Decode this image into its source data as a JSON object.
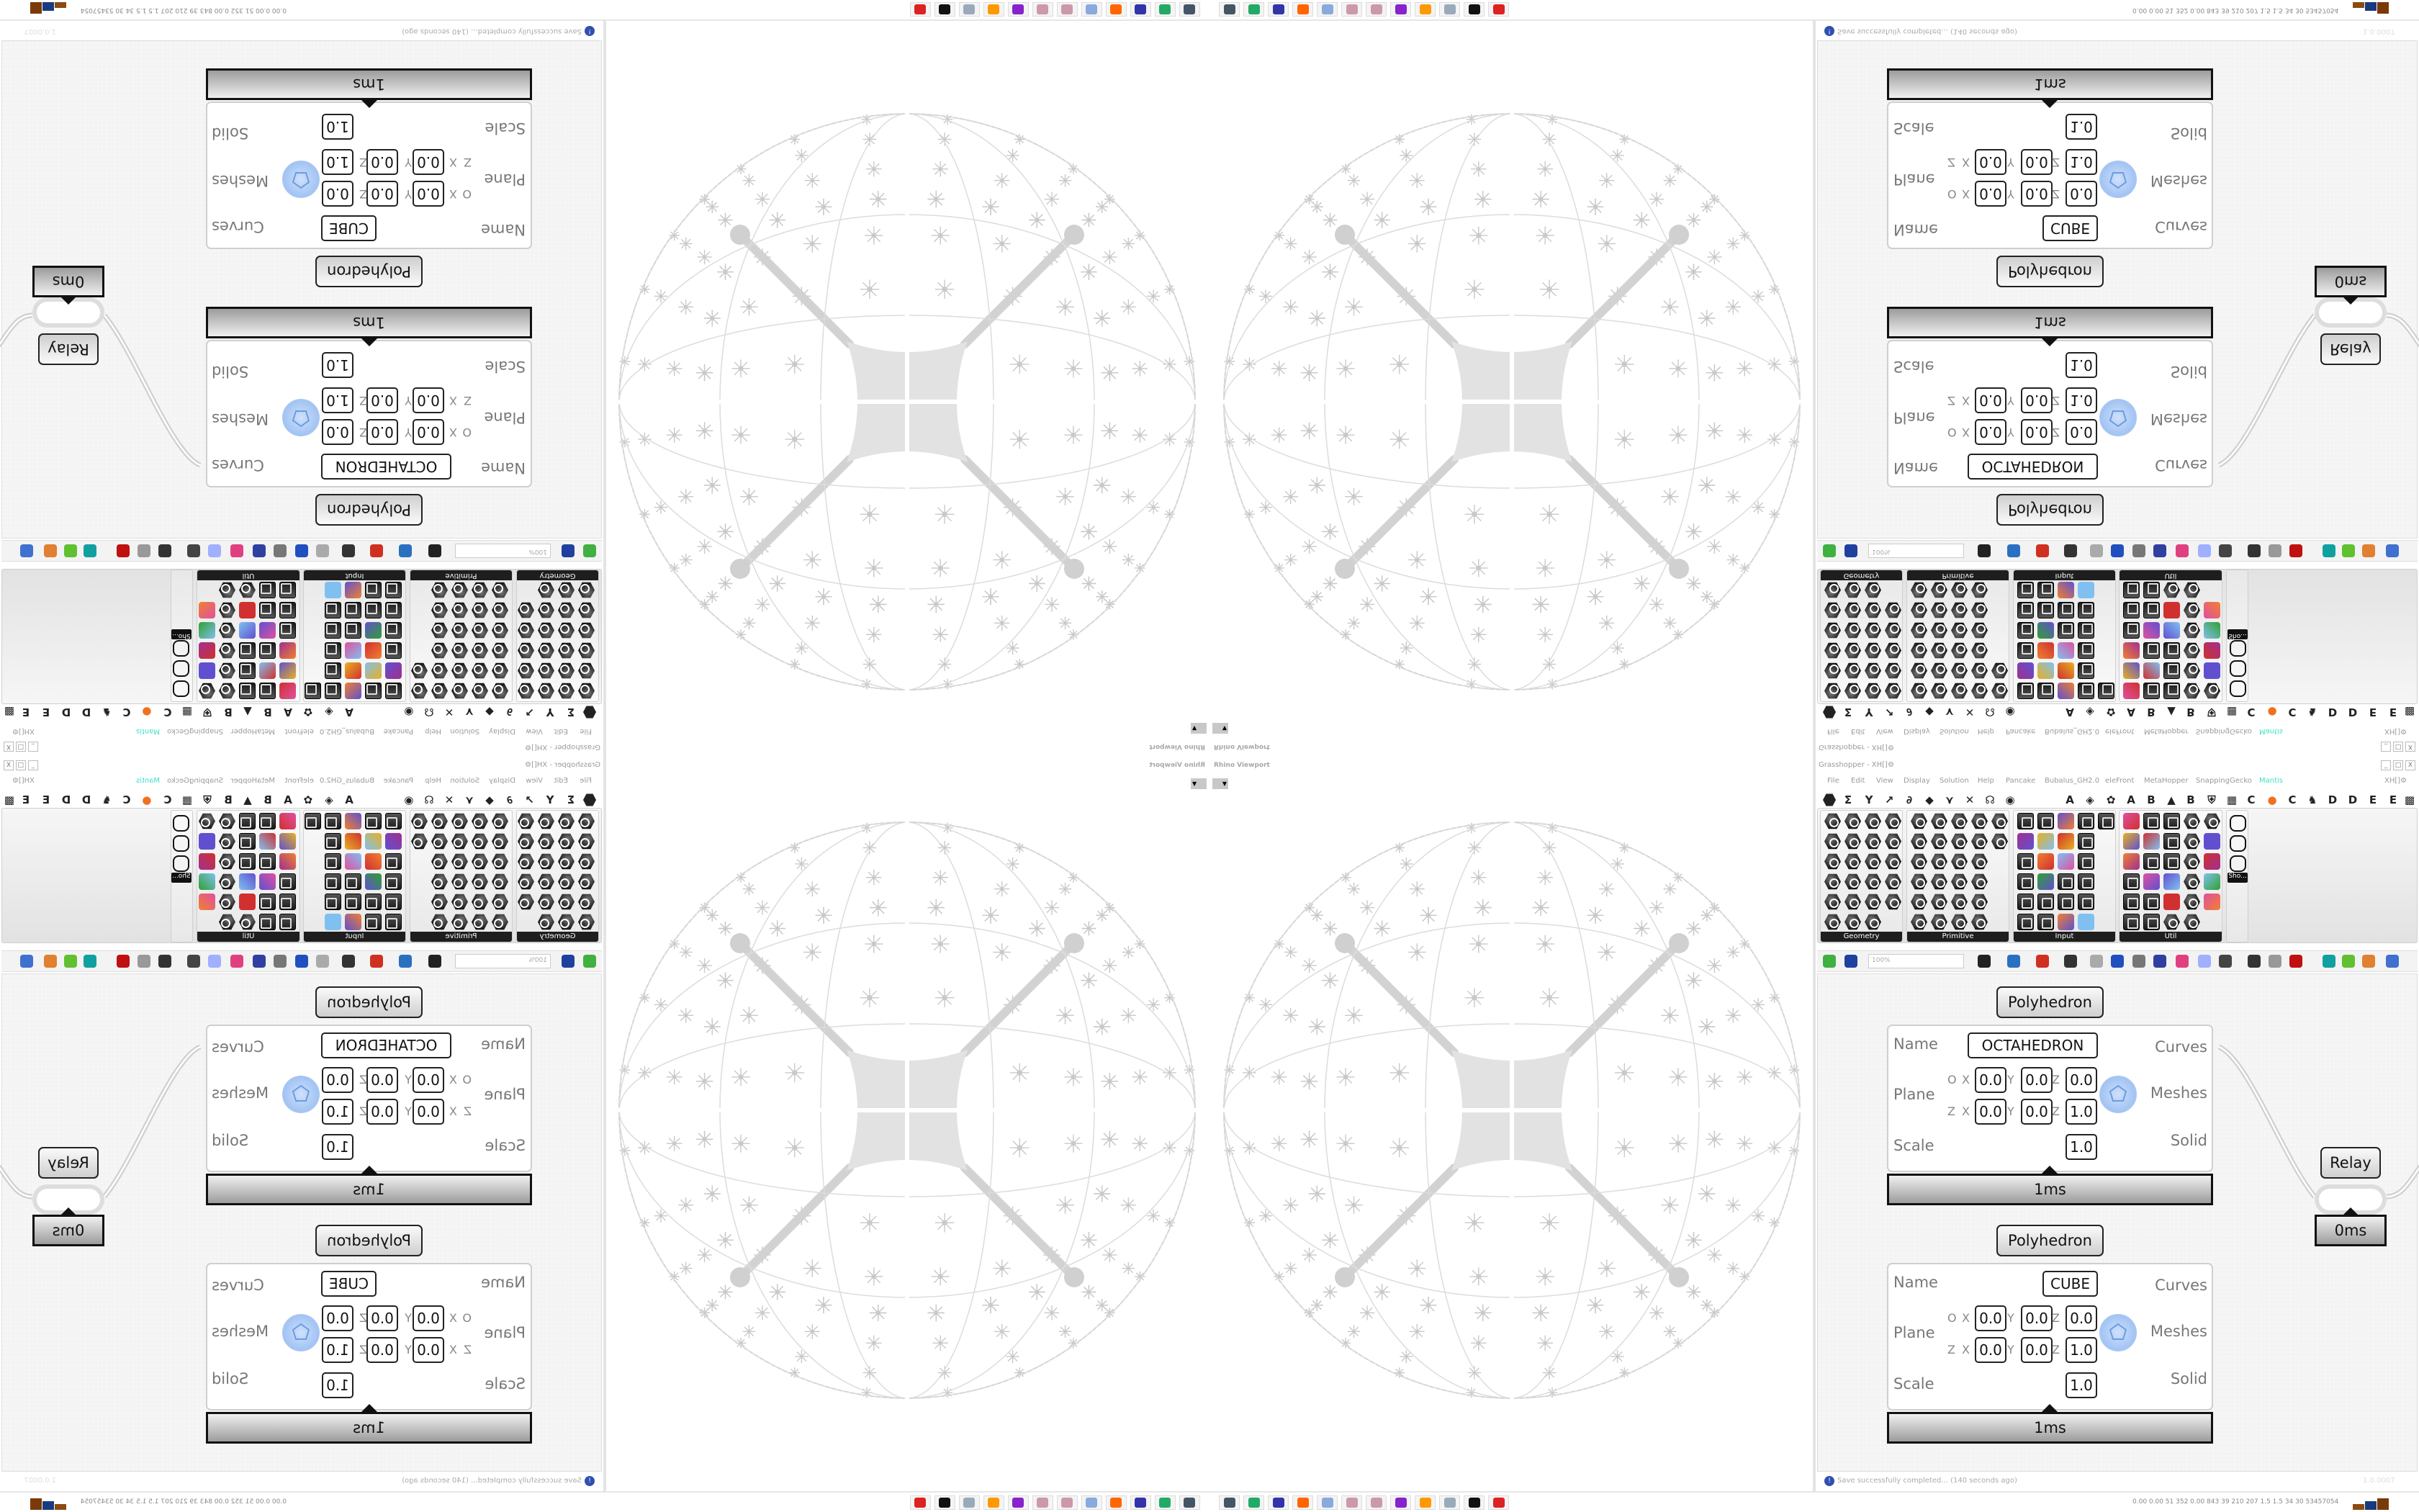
{
  "viewport": {
    "title": "Rhino Viewport",
    "dropdown_icon": "caret-down-icon"
  },
  "grasshopper": {
    "title": "Grasshopper - XH[]⚙",
    "window_buttons": [
      "_",
      "□",
      "X"
    ],
    "menu": [
      "File",
      "Edit",
      "View",
      "Display",
      "Solution",
      "Help",
      "Pancake",
      "Bubalus_GH2.0",
      "eleFront",
      "MetaHopper",
      "SnappingGecko",
      "Mantis"
    ],
    "menu_active": "Mantis",
    "menu_right": "XH[]⚙",
    "tabs": [
      "params",
      "Σ",
      "Y",
      "↗",
      "∂",
      "◆",
      "⋎",
      "✕",
      "☊",
      "◉",
      "A",
      "◈",
      "✿",
      "A",
      "B",
      "▲",
      "B",
      "⛨",
      "▦",
      "C",
      "●",
      "C",
      "♞",
      "D",
      "D",
      "E",
      "E",
      "▩"
    ],
    "panels": [
      {
        "label": "Geometry",
        "rows": [
          [
            "hex",
            "hex",
            "hex",
            "hex"
          ],
          [
            "hex",
            "hex",
            "hex",
            "hex"
          ],
          [
            "hex",
            "hex",
            "hex",
            "hex"
          ],
          [
            "hex",
            "hex",
            "hex",
            "hex"
          ],
          [
            "hex",
            "hex",
            "hex",
            "hex"
          ],
          [
            "hex",
            "hex",
            "hex"
          ]
        ]
      },
      {
        "label": "Primitive",
        "rows": [
          [
            "hex",
            "hex",
            "hex",
            "hex",
            "hex"
          ],
          [
            "hex",
            "hex",
            "hex",
            "hex",
            "hex"
          ],
          [
            "hex",
            "hex",
            "hex",
            "hex"
          ],
          [
            "hex",
            "hex",
            "hex",
            "hex"
          ],
          [
            "hex",
            "hex",
            "hex",
            "hex"
          ],
          [
            "hex",
            "hex",
            "hex",
            "hex"
          ]
        ]
      },
      {
        "label": "Input",
        "rows": [
          [
            "tile",
            "tile",
            "color",
            "tile",
            "tile"
          ],
          [
            "color",
            "color",
            "color",
            "tile"
          ],
          [
            "tile",
            "color",
            "color",
            "tile"
          ],
          [
            "tile",
            "color",
            "tile",
            "tile"
          ],
          [
            "tile",
            "tile",
            "tile",
            "tile"
          ],
          [
            "tile",
            "tile",
            "color",
            "color"
          ]
        ]
      },
      {
        "label": "Util",
        "rows": [
          [
            "color",
            "tile",
            "tile",
            "hex",
            "hex"
          ],
          [
            "color",
            "color",
            "tile",
            "hex",
            "color"
          ],
          [
            "color",
            "tile",
            "tile",
            "hex",
            "color"
          ],
          [
            "tile",
            "color",
            "color",
            "hex",
            "color"
          ],
          [
            "tile",
            "tile",
            "color",
            "hex",
            "color"
          ],
          [
            "tile",
            "tile",
            "hex",
            "hex"
          ]
        ]
      }
    ],
    "extra_panel": {
      "label": "Sho..."
    },
    "toolbar": {
      "zoom": "100%",
      "icons": [
        "new-file",
        "save",
        "zoom-extents",
        "preview-eye",
        "sketch-pen",
        "bake",
        "at-sign",
        "gha",
        "document",
        "search-s",
        "package",
        "bulb",
        "wires",
        "lasso",
        "sleeve",
        "red-gem",
        "teal-shape",
        "green-shape",
        "sphere-half",
        "blue-sphere"
      ]
    },
    "components": [
      {
        "title": "Polyhedron",
        "name": "OCTAHEDRON",
        "inputs": [
          "Name",
          "Plane",
          "Scale"
        ],
        "outputs": [
          "Curves",
          "Meshes",
          "Solid"
        ],
        "plane_origin_label": "O",
        "plane_z_label": "Z",
        "axes": [
          "X",
          "Y",
          "Z"
        ],
        "origin": [
          "0.0",
          "0.0",
          "0.0"
        ],
        "zaxis": [
          "0.0",
          "0.0",
          "1.0"
        ],
        "scale": "1.0",
        "time": "1ms"
      },
      {
        "title": "Polyhedron",
        "name": "CUBE",
        "inputs": [
          "Name",
          "Plane",
          "Scale"
        ],
        "outputs": [
          "Curves",
          "Meshes",
          "Solid"
        ],
        "plane_origin_label": "O",
        "plane_z_label": "Z",
        "axes": [
          "X",
          "Y",
          "Z"
        ],
        "origin": [
          "0.0",
          "0.0",
          "0.0"
        ],
        "zaxis": [
          "0.0",
          "0.0",
          "1.0"
        ],
        "scale": "1.0",
        "time": "1ms"
      }
    ],
    "relay": {
      "title": "Relay",
      "time": "0ms"
    },
    "status": {
      "message": "Save successfully completed... (140 seconds ago)",
      "version": "1.0.0007"
    }
  },
  "taskbar": {
    "apps": [
      "remote-desktop",
      "gpu-monitor",
      "floppy-64",
      "firefox",
      "calculator",
      "paint-palette",
      "paint-palette-2",
      "chat-app",
      "blender",
      "notes-scroll",
      "rhino",
      "red-gear-app"
    ],
    "stats": "0.00 0.00  51  352  0.00  843  39  210  207  1.5  1.5  34  30  53457054"
  },
  "colors": {
    "accent": "#3ee0c8",
    "field_border": "#222222",
    "wire": "#d0d0d0",
    "sphere": "#c9c9c9",
    "mesh_icon": "#8fb8f0"
  }
}
